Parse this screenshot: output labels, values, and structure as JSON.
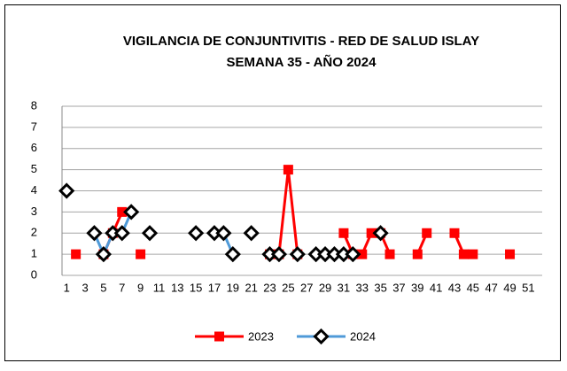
{
  "chart_data": {
    "type": "line",
    "title": "VIGILANCIA DE CONJUNTIVITIS  - RED DE SALUD ISLAY",
    "subtitle": "SEMANA 35 -  AÑO 2024",
    "categories": [
      1,
      null,
      3,
      null,
      5,
      null,
      7,
      null,
      9,
      null,
      11,
      null,
      13,
      null,
      15,
      null,
      17,
      null,
      19,
      null,
      21,
      null,
      23,
      null,
      25,
      null,
      27,
      null,
      29,
      null,
      31,
      null,
      33,
      null,
      35,
      null,
      37,
      null,
      39,
      null,
      41,
      null,
      43,
      null,
      45,
      null,
      47,
      null,
      49,
      null,
      51,
      null
    ],
    "ylim": [
      0,
      8
    ],
    "yticks": [
      0,
      1,
      2,
      3,
      4,
      5,
      6,
      7,
      8
    ],
    "grid": true,
    "legend": "bottom",
    "series": [
      {
        "name": "2023",
        "color": "#ff0000",
        "marker": "square",
        "values": [
          null,
          1,
          null,
          null,
          1,
          2,
          3,
          null,
          1,
          null,
          null,
          null,
          null,
          null,
          null,
          null,
          null,
          null,
          null,
          null,
          null,
          null,
          1,
          1,
          5,
          1,
          null,
          null,
          null,
          null,
          2,
          1,
          1,
          2,
          2,
          1,
          null,
          null,
          1,
          2,
          null,
          null,
          2,
          1,
          1,
          null,
          null,
          null,
          1,
          null,
          null,
          null
        ]
      },
      {
        "name": "2024",
        "color": "#4f9ad8",
        "marker": "diamond",
        "values": [
          4,
          null,
          null,
          2,
          1,
          2,
          2,
          3,
          null,
          2,
          null,
          null,
          null,
          null,
          2,
          null,
          2,
          2,
          1,
          null,
          2,
          null,
          1,
          1,
          null,
          1,
          null,
          1,
          1,
          1,
          1,
          1,
          null,
          null,
          2,
          null,
          null,
          null,
          null,
          null,
          null,
          null,
          null,
          null,
          null,
          null,
          null,
          null,
          null,
          null,
          null,
          null
        ]
      }
    ]
  }
}
